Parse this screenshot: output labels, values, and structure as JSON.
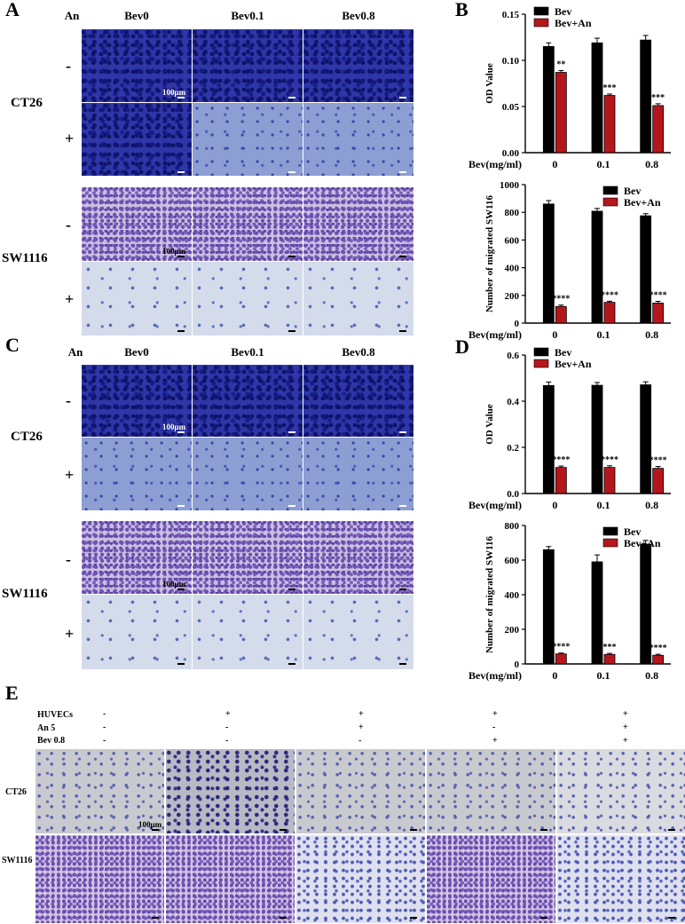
{
  "panels": {
    "A": {
      "letter": "A",
      "an_header": "An",
      "columns": [
        "Bev0",
        "Bev0.1",
        "Bev0.8"
      ],
      "row_groups": [
        "CT26",
        "SW1116"
      ],
      "signs": [
        "-",
        "+",
        "-",
        "+"
      ],
      "scale_label": "100μm"
    },
    "B": {
      "letter": "B"
    },
    "C": {
      "letter": "C",
      "an_header": "An",
      "columns": [
        "Bev0",
        "Bev0.1",
        "Bev0.8"
      ],
      "row_groups": [
        "CT26",
        "SW1116"
      ],
      "signs": [
        "-",
        "+",
        "-",
        "+"
      ],
      "scale_label": "100μm"
    },
    "D": {
      "letter": "D"
    },
    "E": {
      "letter": "E",
      "row_labels": [
        "HUVECs",
        "An 5",
        "Bev 0.8"
      ],
      "matrix": [
        [
          "-",
          "+",
          "+",
          "+",
          "+"
        ],
        [
          "-",
          "-",
          "+",
          "-",
          "+"
        ],
        [
          "-",
          "-",
          "-",
          "+",
          "+"
        ]
      ],
      "image_rows": [
        "CT26",
        "SW1116"
      ],
      "scale_label": "100μm"
    }
  },
  "colors": {
    "bev": "#000000",
    "bev_an": "#b5161c"
  },
  "chart_data": [
    {
      "id": "B-top",
      "type": "bar",
      "categories": [
        "0",
        "0.1",
        "0.8"
      ],
      "xlabel": "Bev(mg/ml)",
      "ylabel": "OD Value",
      "ylim": [
        0,
        0.15
      ],
      "yticks": [
        "0.00",
        "0.05",
        "0.10",
        "0.15"
      ],
      "legend": "top-left",
      "series": [
        {
          "name": "Bev",
          "values": [
            0.115,
            0.119,
            0.122
          ],
          "errors": [
            0.004,
            0.005,
            0.005
          ]
        },
        {
          "name": "Bev+An",
          "values": [
            0.087,
            0.062,
            0.051
          ],
          "errors": [
            0.002,
            0.0015,
            0.002
          ]
        }
      ],
      "significance": [
        "**",
        "***",
        "***"
      ]
    },
    {
      "id": "B-bottom",
      "type": "bar",
      "categories": [
        "0",
        "0.1",
        "0.8"
      ],
      "xlabel": "Bev(mg/ml)",
      "ylabel": "Number of migrated SW116",
      "ylim": [
        0,
        1000
      ],
      "yticks": [
        "0",
        "200",
        "400",
        "600",
        "800",
        "1000"
      ],
      "legend": "top-right",
      "series": [
        {
          "name": "Bev",
          "values": [
            860,
            808,
            775
          ],
          "errors": [
            25,
            20,
            15
          ]
        },
        {
          "name": "Bev+An",
          "values": [
            120,
            150,
            145
          ],
          "errors": [
            10,
            8,
            12
          ]
        }
      ],
      "significance": [
        "****",
        "****",
        "****"
      ]
    },
    {
      "id": "D-top",
      "type": "bar",
      "categories": [
        "0",
        "0.1",
        "0.8"
      ],
      "xlabel": "Bev(mg/ml)",
      "ylabel": "OD Value",
      "ylim": [
        0,
        0.6
      ],
      "yticks": [
        "0.0",
        "0.2",
        "0.4",
        "0.6"
      ],
      "legend": "top-left",
      "series": [
        {
          "name": "Bev",
          "values": [
            0.468,
            0.469,
            0.471
          ],
          "errors": [
            0.015,
            0.012,
            0.013
          ]
        },
        {
          "name": "Bev+An",
          "values": [
            0.113,
            0.113,
            0.109
          ],
          "errors": [
            0.006,
            0.007,
            0.008
          ]
        }
      ],
      "significance": [
        "****",
        "****",
        "****"
      ]
    },
    {
      "id": "D-bottom",
      "type": "bar",
      "categories": [
        "0",
        "0.1",
        "0.8"
      ],
      "xlabel": "Bev(mg/ml)",
      "ylabel": "Number of migrated SW116",
      "ylim": [
        0,
        800
      ],
      "yticks": [
        "0",
        "200",
        "400",
        "600",
        "800"
      ],
      "legend": "top-right",
      "series": [
        {
          "name": "Bev",
          "values": [
            660,
            590,
            692
          ],
          "errors": [
            18,
            40,
            22
          ]
        },
        {
          "name": "Bev+An",
          "values": [
            58,
            55,
            50
          ],
          "errors": [
            5,
            6,
            6
          ]
        }
      ],
      "significance": [
        "****",
        "***",
        "****"
      ]
    }
  ]
}
